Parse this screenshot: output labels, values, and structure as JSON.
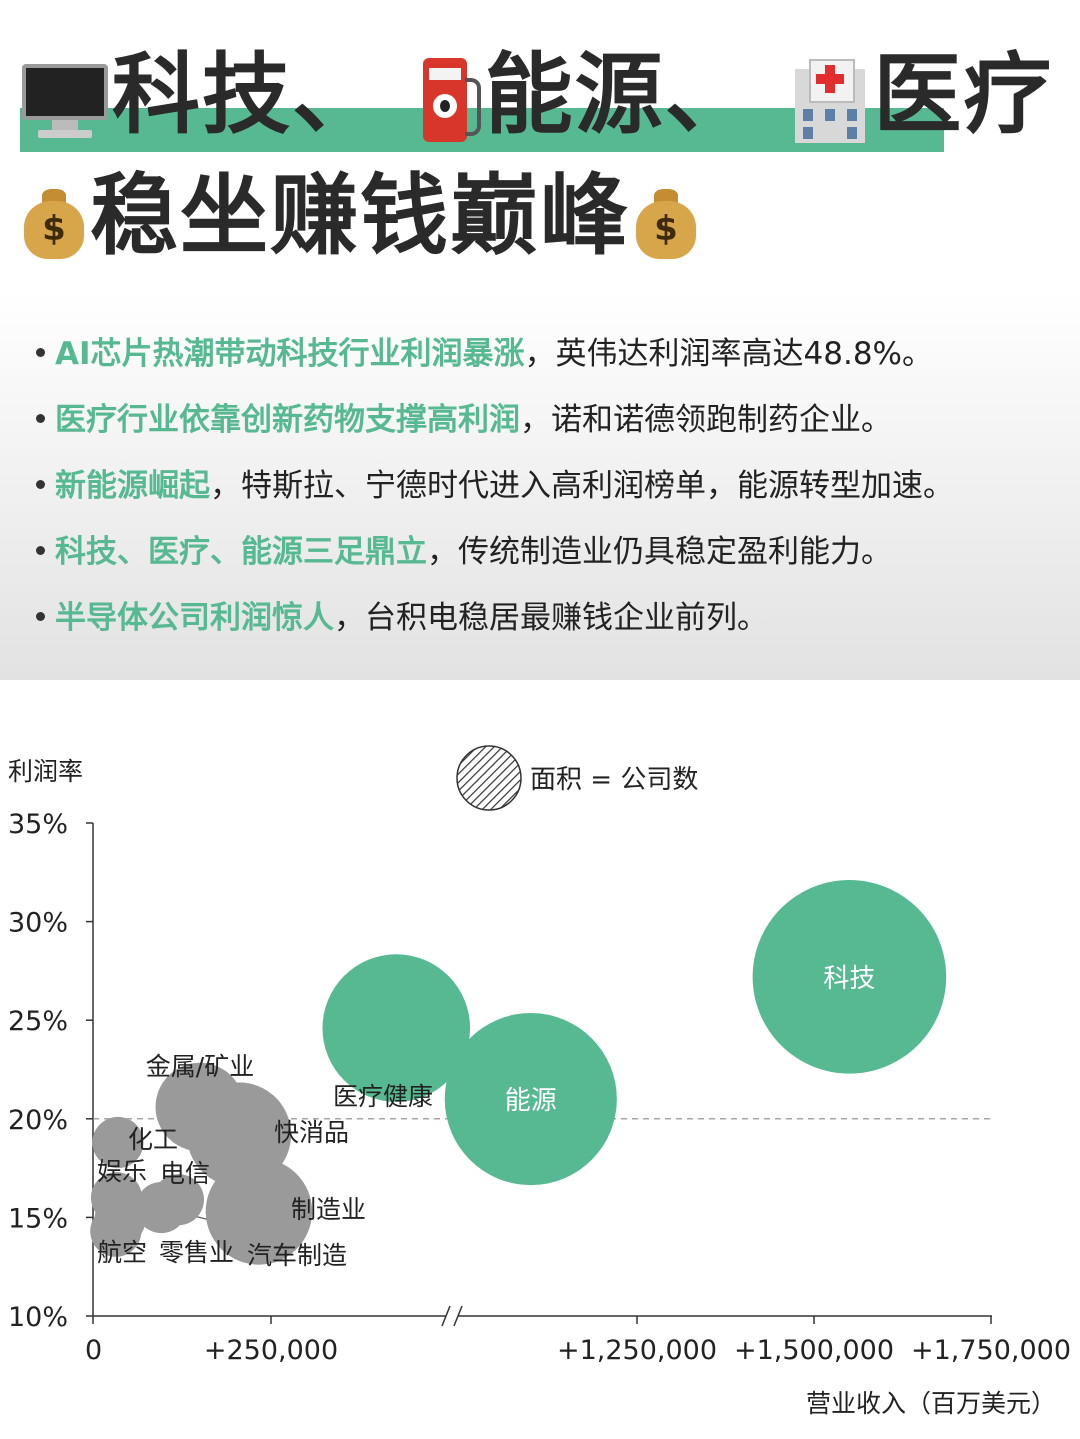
{
  "header": {
    "line1": [
      "科技、",
      "能源、",
      "医疗"
    ],
    "line2": "稳坐赚钱巅峰",
    "icons": [
      "computer-icon",
      "fuel-pump-icon",
      "hospital-icon",
      "money-bag-icon"
    ],
    "money_symbol": "$",
    "accent_color": "#57b992"
  },
  "bullets": [
    {
      "highlight": "AI芯片热潮带动科技行业利润暴涨",
      "rest": "，英伟达利润率高达48.8%。"
    },
    {
      "highlight": "医疗行业依靠创新药物支撑高利润",
      "rest": "，诺和诺德领跑制药企业。"
    },
    {
      "highlight": "新能源崛起",
      "rest": "，特斯拉、宁德时代进入高利润榜单，能源转型加速。"
    },
    {
      "highlight": "科技、医疗、能源三足鼎立",
      "rest": "，传统制造业仍具稳定盈利能力。"
    },
    {
      "highlight": "半导体公司利润惊人",
      "rest": "，台积电稳居最赚钱企业前列。"
    }
  ],
  "chart_data": {
    "type": "scatter",
    "subtype": "bubble",
    "ylabel": "利润率",
    "xlabel": "营业收入（百万美元）",
    "size_legend": "面积 = 公司数",
    "y_ticks": [
      "10%",
      "15%",
      "20%",
      "25%",
      "30%",
      "35%"
    ],
    "ylim": [
      10,
      35
    ],
    "x_ticks": [
      "0",
      "+250,000",
      "+1,250,000",
      "+1,500,000",
      "+1,750,000"
    ],
    "x_axis_break": "between 250,000 and 1,250,000",
    "reference_line_y": 20,
    "colors": {
      "highlight": "#57b992",
      "other": "#9a9a9a"
    },
    "series": [
      {
        "name": "科技",
        "revenue": 1550000,
        "margin": 27.2,
        "size": 8.6,
        "highlight": true,
        "label": "科技"
      },
      {
        "name": "能源",
        "revenue": 1100000,
        "margin": 21.0,
        "size": 6.8,
        "highlight": true,
        "label": "能源"
      },
      {
        "name": "医疗健康",
        "revenue": 910000,
        "margin": 24.6,
        "size": 5.0,
        "highlight": true,
        "label": "医疗健康"
      },
      {
        "name": "金属/矿业",
        "revenue": 150000,
        "margin": 20.6,
        "size": 1.8,
        "highlight": false,
        "label": "金属/矿业"
      },
      {
        "name": "快消品",
        "revenue": 205000,
        "margin": 19.2,
        "size": 2.5,
        "highlight": false,
        "label": "快消品"
      },
      {
        "name": "化工",
        "revenue": 35000,
        "margin": 18.8,
        "size": 0.6,
        "highlight": false,
        "label": "化工"
      },
      {
        "name": "制造业",
        "revenue": 233000,
        "margin": 15.3,
        "size": 2.6,
        "highlight": false,
        "label": "制造业"
      },
      {
        "name": "电信",
        "revenue": 120000,
        "margin": 15.9,
        "size": 0.6,
        "highlight": false,
        "label": "电信"
      },
      {
        "name": "娱乐",
        "revenue": 33000,
        "margin": 16.0,
        "size": 0.6,
        "highlight": false,
        "label": "娱乐"
      },
      {
        "name": "汽车制造",
        "revenue": 96000,
        "margin": 15.5,
        "size": 0.6,
        "highlight": false,
        "label": "汽车制造"
      },
      {
        "name": "零售业",
        "revenue": 38000,
        "margin": 14.9,
        "size": 0.6,
        "highlight": false,
        "label": "零售业"
      },
      {
        "name": "航空",
        "revenue": 32000,
        "margin": 14.3,
        "size": 0.6,
        "highlight": false,
        "label": "航空"
      }
    ]
  }
}
